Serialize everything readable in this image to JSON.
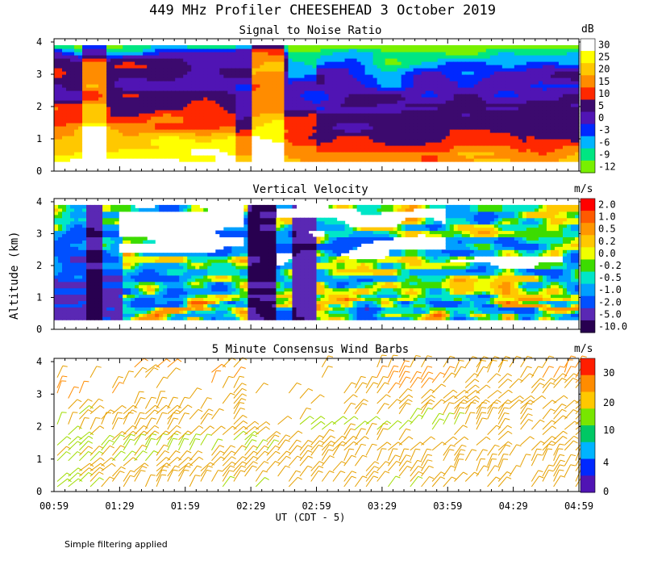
{
  "title": "449 MHz Profiler CHEESEHEAD  3 October 2019",
  "ylabel": "Altitude (km)",
  "xlabel": "UT  (CDT - 5)",
  "xticks": [
    "00:59",
    "01:29",
    "01:59",
    "02:29",
    "02:59",
    "03:29",
    "03:59",
    "04:29",
    "04:59"
  ],
  "footer": "Simple filtering applied",
  "chart_data": [
    {
      "type": "heatmap",
      "title": "Signal to Noise Ratio",
      "unit": "dB",
      "ylim": [
        0,
        4
      ],
      "yticks": [
        "0",
        "1",
        "2",
        "3",
        "4"
      ],
      "colorbar": [
        {
          "label": "30",
          "color": "#ffffff"
        },
        {
          "label": "25",
          "color": "#ffff00"
        },
        {
          "label": "20",
          "color": "#ffc800"
        },
        {
          "label": "15",
          "color": "#ff8c00"
        },
        {
          "label": "10",
          "color": "#ff2800"
        },
        {
          "label": "5",
          "color": "#3c0a6e"
        },
        {
          "label": "0",
          "color": "#5014b4"
        },
        {
          "label": "-3",
          "color": "#0028ff"
        },
        {
          "label": "-6",
          "color": "#00b4ff"
        },
        {
          "label": "-9",
          "color": "#00e682"
        },
        {
          "label": "-12",
          "color": "#78f000"
        }
      ]
    },
    {
      "type": "heatmap",
      "title": "Vertical Velocity",
      "unit": "m/s",
      "ylim": [
        0,
        4
      ],
      "yticks": [
        "0",
        "1",
        "2",
        "3",
        "4"
      ],
      "colorbar": [
        {
          "label": "2.0",
          "color": "#ff0000"
        },
        {
          "label": "1.0",
          "color": "#ff5a00"
        },
        {
          "label": "0.5",
          "color": "#ff9600"
        },
        {
          "label": "0.2",
          "color": "#ffc800"
        },
        {
          "label": "0.0",
          "color": "#f0ff00"
        },
        {
          "label": "-0.2",
          "color": "#3cdc00"
        },
        {
          "label": "-0.5",
          "color": "#00e6c8"
        },
        {
          "label": "-1.0",
          "color": "#00a0ff"
        },
        {
          "label": "-2.0",
          "color": "#0050ff"
        },
        {
          "label": "-5.0",
          "color": "#5a28b4"
        },
        {
          "label": "-10.0",
          "color": "#280050"
        }
      ]
    },
    {
      "type": "scatter",
      "title": "5 Minute Consensus Wind Barbs",
      "unit": "m/s",
      "ylim": [
        0,
        4
      ],
      "yticks": [
        "0",
        "1",
        "2",
        "3",
        "4"
      ],
      "colorbar_labels": [
        "30",
        "20",
        "10",
        "4",
        "0"
      ],
      "colorbar_colors": [
        "#ff1e00",
        "#ff8c00",
        "#ffc800",
        "#78e600",
        "#00c864",
        "#00b4ff",
        "#0028ff",
        "#5014b4"
      ]
    }
  ]
}
